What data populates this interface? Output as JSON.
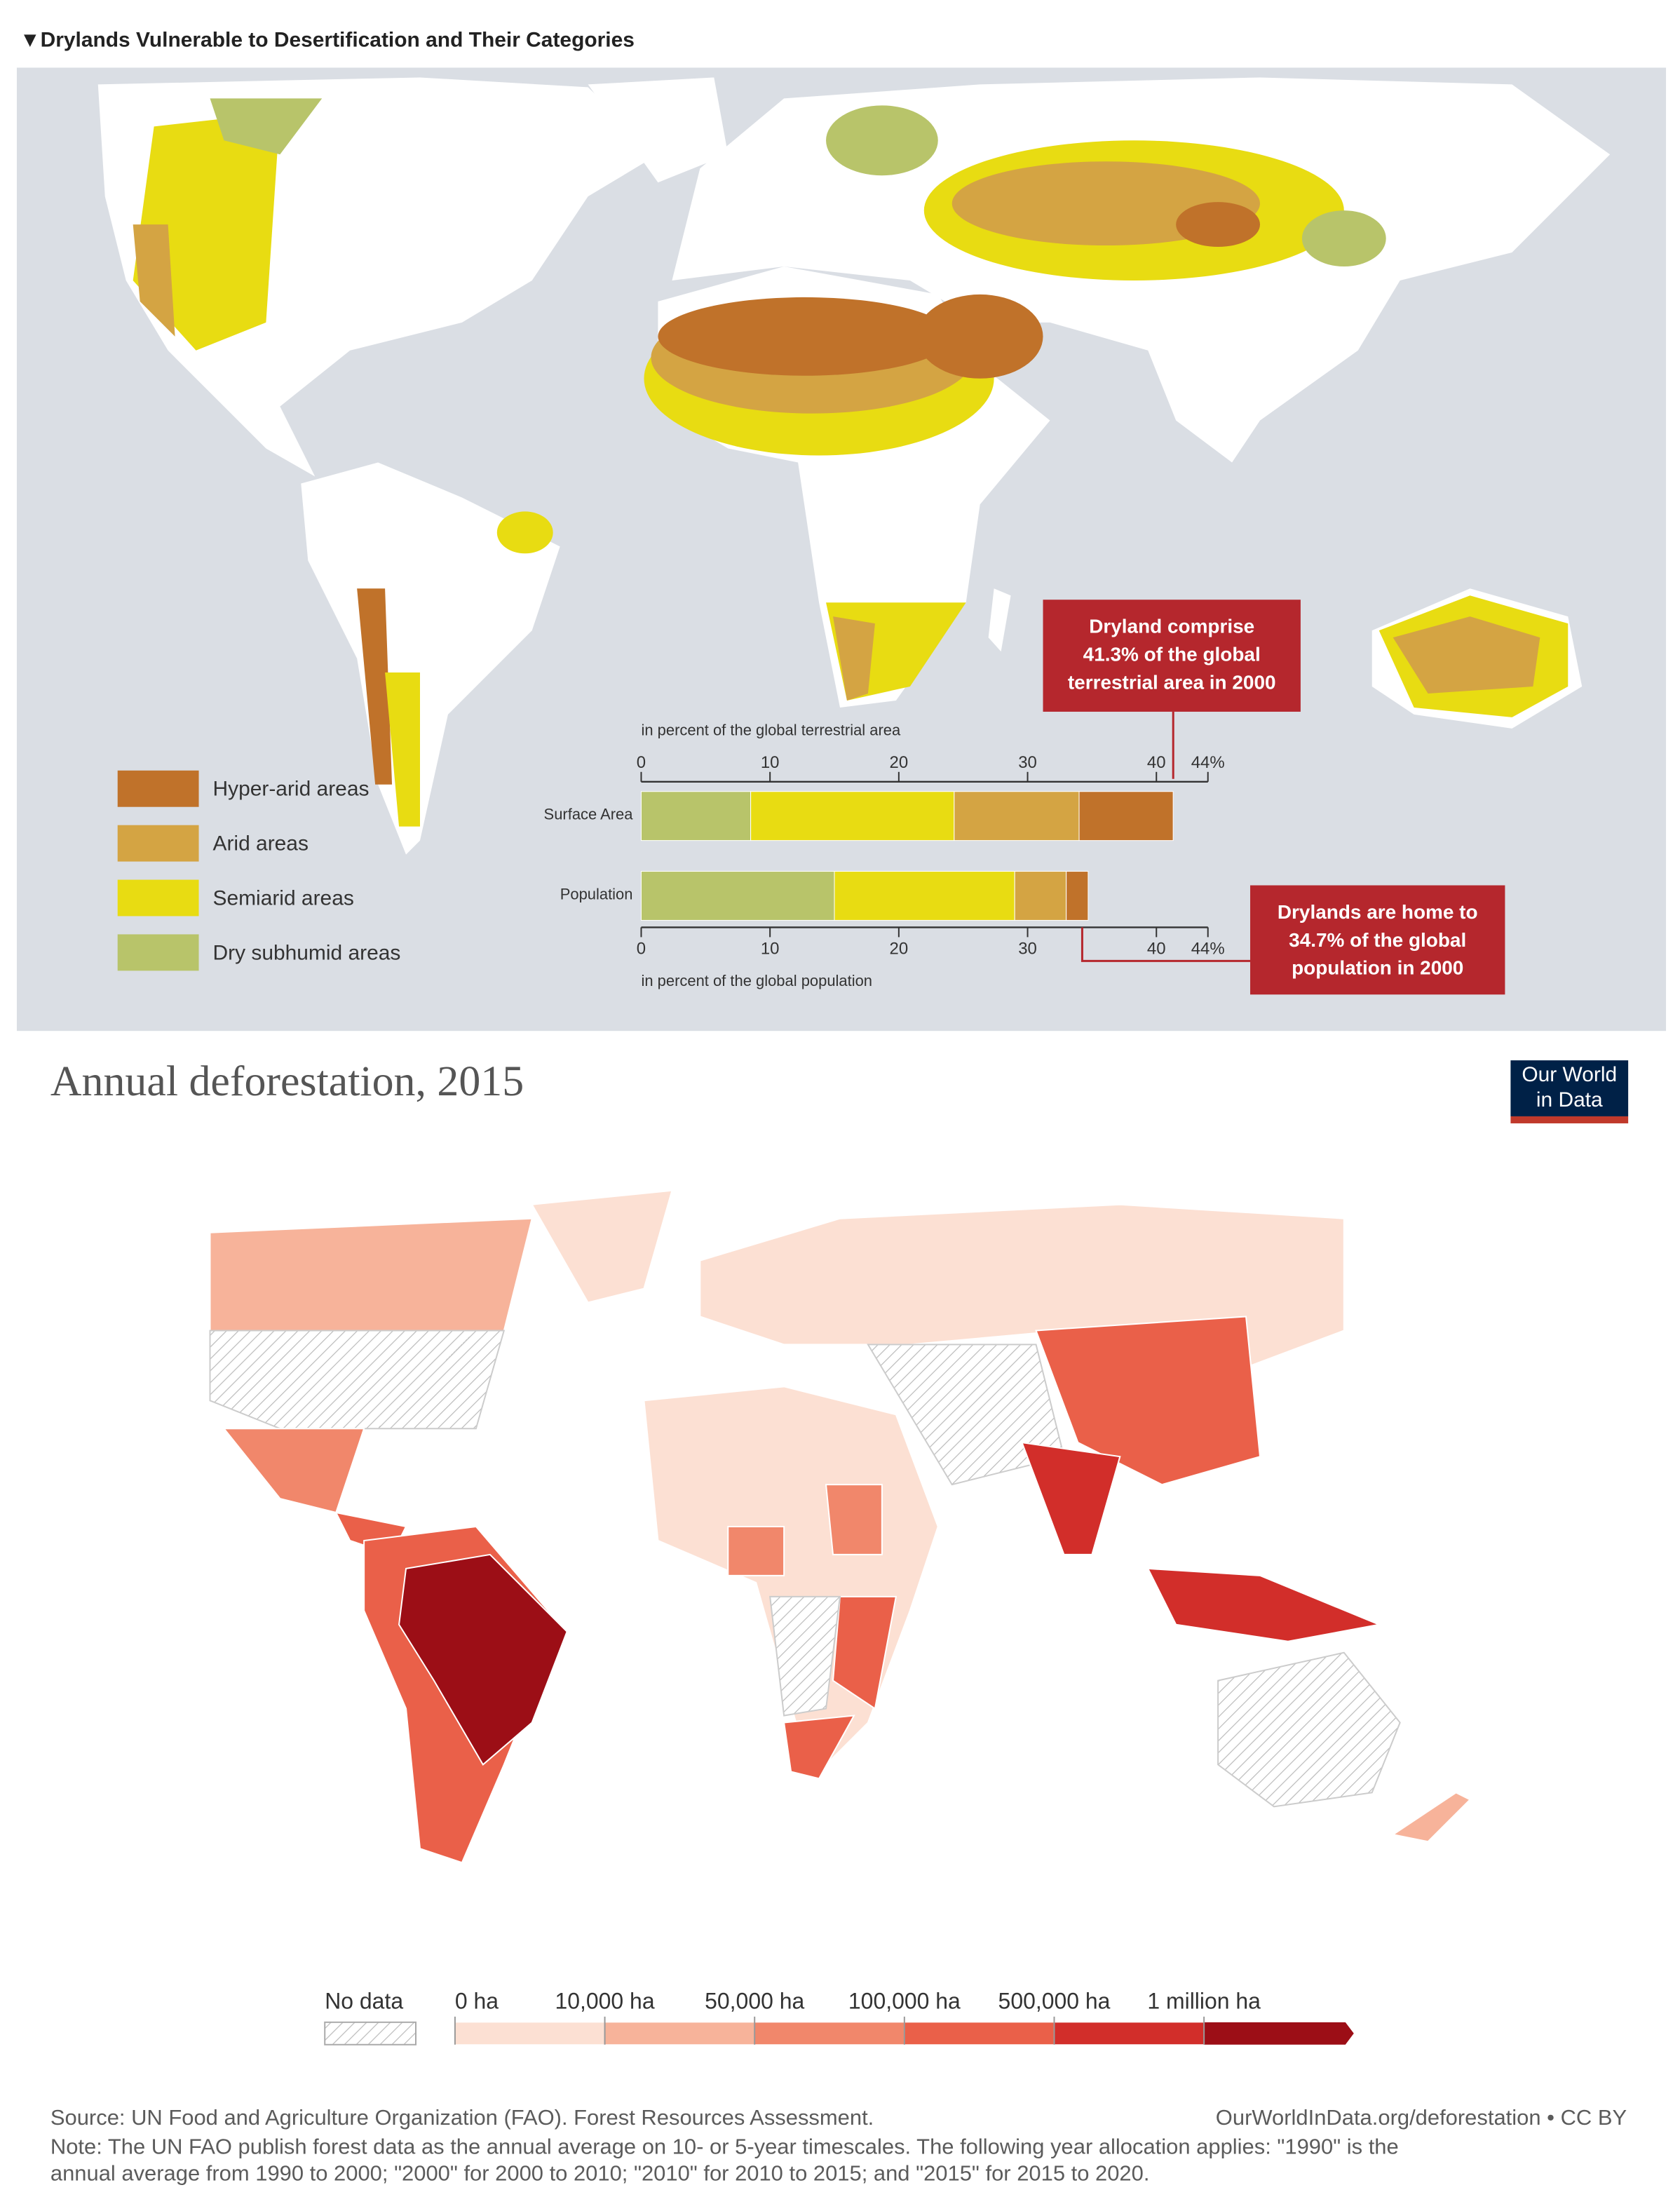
{
  "drylands": {
    "title": "▼Drylands Vulnerable to Desertification and Their Categories",
    "bar_chart": {
      "type": "bar",
      "orientation": "horizontal",
      "stacked": true,
      "x_label_top": "in percent of the global terrestrial area",
      "x_label_bottom": "in percent of the global population",
      "categories": [
        "Surface Area",
        "Population"
      ],
      "xlim": [
        0,
        44
      ],
      "xticks": [
        0,
        10,
        20,
        30,
        40,
        {
          "value": 44,
          "label": "44%"
        }
      ],
      "series": [
        {
          "name": "Dry subhumid areas",
          "color": "#b8c46a",
          "values": [
            8.5,
            15
          ]
        },
        {
          "name": "Semiarid areas",
          "color": "#e8dc12",
          "values": [
            15.8,
            14
          ]
        },
        {
          "name": "Arid areas",
          "color": "#d4a443",
          "values": [
            9.7,
            4
          ]
        },
        {
          "name": "Hyper-arid areas",
          "color": "#c0722a",
          "values": [
            7.3,
            1.7
          ]
        }
      ]
    },
    "callouts": [
      {
        "lines": [
          "Dryland comprise",
          "41.3% of the global",
          "terrestrial area in 2000"
        ]
      },
      {
        "lines": [
          "Drylands are home to",
          "34.7% of the global",
          "population in 2000"
        ]
      }
    ]
  },
  "deforestation": {
    "title": "Annual deforestation, 2015",
    "logo": [
      "Our World",
      "in Data"
    ],
    "legend": {
      "no_data": "No data",
      "bins": [
        {
          "value": 0,
          "label": "0 ha"
        },
        {
          "value": 10000,
          "label": "10,000 ha"
        },
        {
          "value": 50000,
          "label": "50,000 ha"
        },
        {
          "value": 100000,
          "label": "100,000 ha"
        },
        {
          "value": 500000,
          "label": "500,000 ha"
        },
        {
          "value": 1000000,
          "label": "1 million ha"
        }
      ],
      "colors": [
        "#fce0d3",
        "#f7b39a",
        "#f1876b",
        "#ea6049",
        "#d22e2a",
        "#9c0e16"
      ]
    },
    "source": "Source: UN Food and Agriculture Organization (FAO). Forest Resources Assessment.",
    "url": "OurWorldInData.org/deforestation • CC BY",
    "note": [
      "Note: The UN FAO publish forest data as the annual average on 10- or 5-year timescales. The following year allocation applies: \"1990\" is the",
      "annual average from 1990 to 2000; \"2000\" for 2000 to 2010; \"2010\" for 2010 to 2015; and \"2015\" for 2015 to 2020."
    ]
  }
}
